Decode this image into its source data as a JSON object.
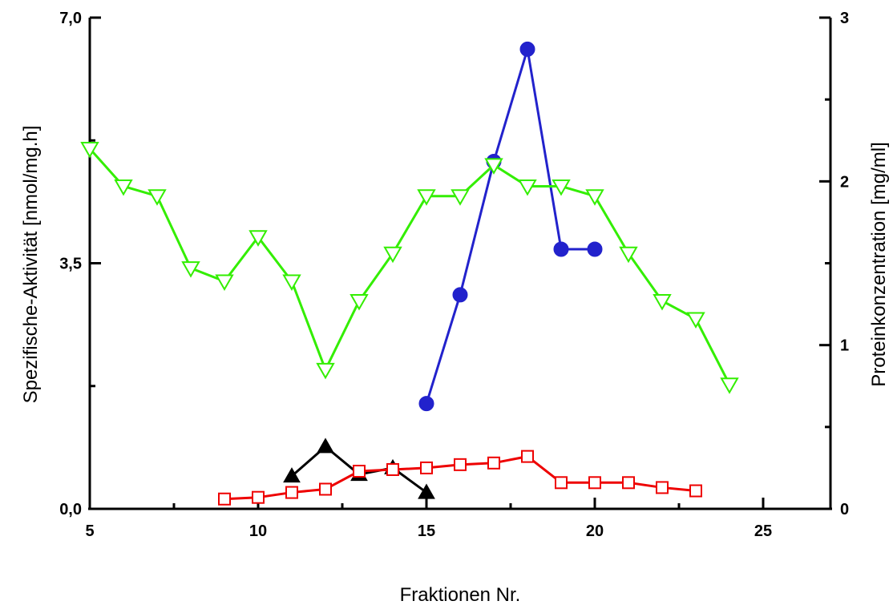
{
  "chart_data": {
    "type": "line",
    "xlabel": "Fraktionen Nr.",
    "ylabel_left": "Spezifische-Aktivität [nmol/mg.h]",
    "ylabel_right": "Proteinkonzentration [mg/ml]",
    "xlim": [
      5,
      27
    ],
    "x_ticks": [
      5,
      10,
      15,
      20,
      25
    ],
    "x_tick_labels": [
      "5",
      "10",
      "15",
      "20",
      "25"
    ],
    "ylim_left": [
      0,
      7
    ],
    "y_left_ticks": [
      0,
      3.5,
      7
    ],
    "y_left_tick_labels": [
      "0,0",
      "3,5",
      "7,0"
    ],
    "ylim_right": [
      0,
      3
    ],
    "y_right_ticks": [
      0,
      1,
      2,
      3
    ],
    "y_right_tick_labels": [
      "0",
      "1",
      "2",
      "3"
    ],
    "grid": false,
    "series": [
      {
        "axis": "left",
        "color": "#2222cc",
        "marker": "filled-circle",
        "x": [
          15,
          16,
          17,
          18,
          19,
          20
        ],
        "y": [
          1.5,
          3.05,
          4.95,
          6.55,
          3.7,
          3.7
        ]
      },
      {
        "axis": "right",
        "color": "#33ee00",
        "marker": "open-triangle-down",
        "x": [
          5,
          6,
          7,
          8,
          9,
          10,
          11,
          12,
          13,
          14,
          15,
          16,
          17,
          18,
          19,
          20,
          21,
          22,
          23,
          24
        ],
        "y": [
          2.2,
          1.97,
          1.91,
          1.47,
          1.39,
          1.66,
          1.39,
          0.85,
          1.27,
          1.56,
          1.91,
          1.91,
          2.1,
          1.97,
          1.97,
          1.91,
          1.56,
          1.27,
          1.16,
          0.76
        ]
      },
      {
        "axis": "right",
        "color": "#000000",
        "marker": "filled-triangle-up",
        "x": [
          11,
          12,
          13,
          14,
          15
        ],
        "y": [
          0.2,
          0.38,
          0.21,
          0.25,
          0.1
        ]
      },
      {
        "axis": "right",
        "color": "#ee0000",
        "marker": "open-square",
        "x": [
          9,
          10,
          11,
          12,
          13,
          14,
          15,
          16,
          17,
          18,
          19,
          20,
          21,
          22,
          23
        ],
        "y": [
          0.06,
          0.07,
          0.1,
          0.12,
          0.23,
          0.24,
          0.25,
          0.27,
          0.28,
          0.32,
          0.16,
          0.16,
          0.16,
          0.13,
          0.11
        ]
      }
    ]
  }
}
